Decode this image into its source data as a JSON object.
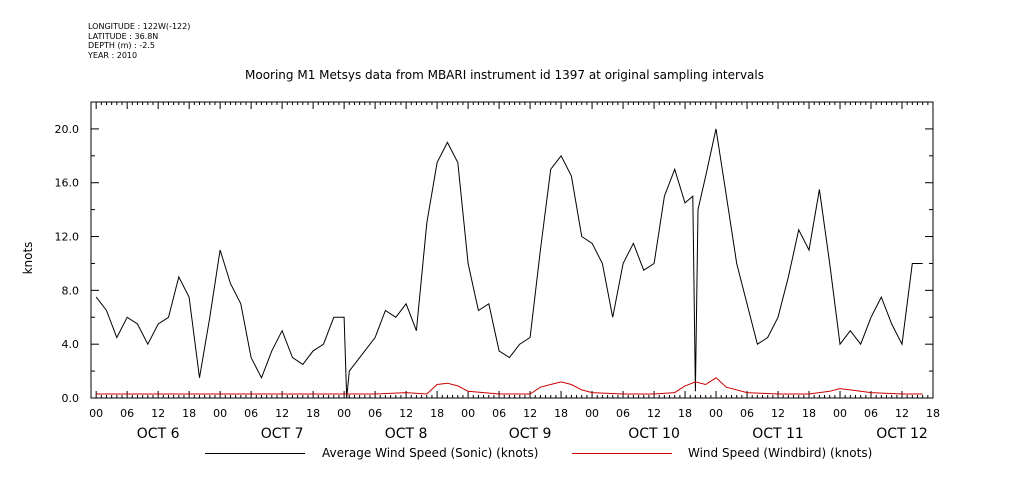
{
  "header": {
    "meta_lines": [
      "LONGITUDE : 122W(-122)",
      "LATITUDE : 36.8N",
      "DEPTH (m) : -2.5",
      "YEAR : 2010"
    ],
    "title": "Mooring M1 Metsys data from MBARI instrument id 1397 at original sampling intervals"
  },
  "colors": {
    "sonic": "#000000",
    "windbird": "#cc0000",
    "axis": "#000000"
  },
  "legend": {
    "sonic_label": "Average Wind Speed (Sonic) (knots)",
    "windbird_label": "Wind Speed (Windbird) (knots)"
  },
  "chart_data": {
    "type": "line",
    "title": "Mooring M1 Metsys data from MBARI instrument id 1397 at original sampling intervals",
    "ylabel": "knots",
    "xlabel": "",
    "x_units": "hours since OCT 6 00:00",
    "xlim": [
      -1,
      162
    ],
    "ylim": [
      0,
      22
    ],
    "y_ticks": [
      "0.0",
      "4.0",
      "8.0",
      "12.0",
      "16.0",
      "20.0"
    ],
    "y_tick_values": [
      0,
      4,
      8,
      12,
      16,
      20
    ],
    "hour_tick_labels": [
      "00",
      "06",
      "12",
      "18"
    ],
    "day_labels": [
      "OCT 6",
      "OCT 7",
      "OCT 8",
      "OCT 9",
      "OCT 10",
      "OCT 11",
      "OCT 12"
    ],
    "grid": false,
    "legend_position": "bottom",
    "series": [
      {
        "name": "Average Wind Speed (Sonic) (knots)",
        "x": [
          0,
          2,
          4,
          6,
          8,
          10,
          12,
          14,
          16,
          18,
          20,
          22,
          24,
          26,
          28,
          30,
          32,
          34,
          36,
          38,
          40,
          42,
          44,
          46,
          48,
          48.5,
          49,
          50,
          52,
          54,
          56,
          58,
          60,
          62,
          64,
          66,
          68,
          70,
          72,
          74,
          76,
          78,
          80,
          82,
          84,
          86,
          88,
          90,
          92,
          94,
          96,
          98,
          100,
          102,
          104,
          106,
          108,
          110,
          112,
          114,
          115.5,
          116,
          116.5,
          118,
          120,
          122,
          124,
          126,
          128,
          130,
          132,
          134,
          136,
          138,
          140,
          142,
          144,
          146,
          148,
          150,
          152,
          154,
          156,
          158,
          160
        ],
        "values": [
          7.5,
          6.5,
          4.5,
          6.0,
          5.5,
          4.0,
          5.5,
          6.0,
          9.0,
          7.5,
          1.5,
          6.0,
          11.0,
          8.5,
          7.0,
          3.0,
          1.5,
          3.5,
          5.0,
          3.0,
          2.5,
          3.5,
          4.0,
          6.0,
          6.0,
          0.0,
          2.0,
          2.5,
          3.5,
          4.5,
          6.5,
          6.0,
          7.0,
          5.0,
          13.0,
          17.5,
          19.0,
          17.5,
          10.0,
          6.5,
          7.0,
          3.5,
          3.0,
          4.0,
          4.5,
          11.0,
          17.0,
          18.0,
          16.5,
          12.0,
          11.5,
          10.0,
          6.0,
          10.0,
          11.5,
          9.5,
          10.0,
          15.0,
          17.0,
          14.5,
          15.0,
          0.5,
          14.0,
          16.5,
          20.0,
          15.0,
          10.0,
          7.0,
          4.0,
          4.5,
          6.0,
          9.0,
          12.5,
          11.0,
          15.5,
          10.0,
          4.0,
          5.0,
          4.0,
          6.0,
          7.5,
          5.5,
          4.0,
          10.0,
          10.0
        ]
      },
      {
        "name": "Wind Speed (Windbird) (knots)",
        "x": [
          0,
          6,
          12,
          18,
          24,
          30,
          36,
          42,
          48,
          54,
          60,
          64,
          66,
          68,
          70,
          72,
          78,
          84,
          86,
          88,
          90,
          92,
          94,
          96,
          102,
          108,
          112,
          114,
          116,
          118,
          120,
          122,
          126,
          132,
          138,
          142,
          144,
          146,
          150,
          156,
          160
        ],
        "values": [
          0.3,
          0.3,
          0.3,
          0.3,
          0.3,
          0.3,
          0.3,
          0.3,
          0.3,
          0.3,
          0.4,
          0.3,
          1.0,
          1.1,
          0.9,
          0.5,
          0.3,
          0.3,
          0.8,
          1.0,
          1.2,
          1.0,
          0.6,
          0.4,
          0.3,
          0.3,
          0.4,
          0.9,
          1.2,
          1.0,
          1.5,
          0.8,
          0.4,
          0.3,
          0.3,
          0.5,
          0.7,
          0.6,
          0.4,
          0.3,
          0.3
        ]
      }
    ]
  }
}
